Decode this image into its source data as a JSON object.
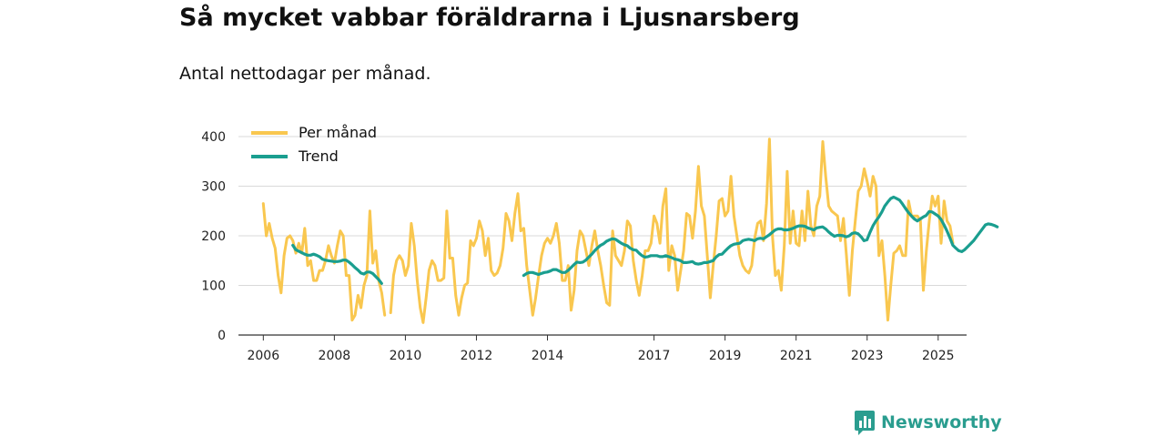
{
  "chart_data": {
    "type": "line",
    "title": "Så mycket vabbar föräldrarna i Ljusnarsberg",
    "subtitle": "Antal nettodagar per månad.",
    "xlabel": "",
    "ylabel": "",
    "xlim": [
      2006,
      2025.5
    ],
    "ylim": [
      0,
      400
    ],
    "yticks": [
      0,
      100,
      200,
      300,
      400
    ],
    "xticks": [
      {
        "value": 2006,
        "label": "2006"
      },
      {
        "value": 2008,
        "label": "2008"
      },
      {
        "value": 2010,
        "label": "2010"
      },
      {
        "value": 2012,
        "label": "2012"
      },
      {
        "value": 2014,
        "label": "2014"
      },
      {
        "value": 2017,
        "label": "2017"
      },
      {
        "value": 2019,
        "label": "2019"
      },
      {
        "value": 2021,
        "label": "2021"
      },
      {
        "value": 2023,
        "label": "2023"
      },
      {
        "value": 2025,
        "label": "2025"
      }
    ],
    "grid": true,
    "legend_position": "top-left",
    "series": [
      {
        "name": "Per månad",
        "color": "#f9c74f",
        "x_start": 2006.0,
        "x_step": 0.0833333,
        "values": [
          265,
          200,
          225,
          195,
          175,
          120,
          85,
          160,
          195,
          200,
          190,
          165,
          185,
          165,
          215,
          140,
          150,
          110,
          110,
          130,
          130,
          150,
          180,
          160,
          145,
          180,
          210,
          200,
          120,
          120,
          30,
          40,
          80,
          55,
          100,
          120,
          250,
          145,
          170,
          110,
          85,
          40,
          null,
          45,
          120,
          150,
          160,
          150,
          120,
          140,
          225,
          180,
          110,
          55,
          25,
          75,
          130,
          150,
          140,
          110,
          110,
          115,
          250,
          155,
          155,
          80,
          40,
          75,
          100,
          105,
          190,
          180,
          195,
          230,
          210,
          160,
          195,
          130,
          120,
          125,
          140,
          175,
          245,
          230,
          190,
          245,
          285,
          210,
          215,
          140,
          90,
          40,
          75,
          120,
          160,
          185,
          195,
          185,
          200,
          225,
          185,
          110,
          110,
          140,
          50,
          90,
          170,
          210,
          200,
          170,
          140,
          180,
          210,
          170,
          140,
          100,
          65,
          60,
          210,
          160,
          150,
          140,
          170,
          230,
          220,
          150,
          110,
          80,
          120,
          170,
          170,
          185,
          240,
          225,
          185,
          260,
          295,
          130,
          180,
          160,
          90,
          130,
          170,
          245,
          240,
          195,
          250,
          340,
          260,
          240,
          160,
          75,
          140,
          200,
          270,
          275,
          240,
          250,
          320,
          240,
          200,
          160,
          140,
          130,
          125,
          140,
          195,
          225,
          230,
          190,
          265,
          395,
          200,
          120,
          130,
          90,
          180,
          330,
          185,
          250,
          185,
          180,
          250,
          190,
          290,
          220,
          200,
          260,
          280,
          390,
          320,
          260,
          250,
          245,
          240,
          190,
          235,
          160,
          80,
          170,
          230,
          290,
          300,
          335,
          310,
          280,
          320,
          300,
          160,
          190,
          120,
          30,
          100,
          165,
          170,
          180,
          160,
          160,
          270,
          240,
          240,
          240,
          230,
          90,
          170,
          230,
          280,
          260,
          280,
          185,
          270,
          230,
          220,
          185
        ]
      },
      {
        "name": "Trend",
        "color": "#1a9e8f",
        "x_start": 2006.83,
        "x_step": 0.0833333,
        "values": [
          181,
          172,
          169,
          166,
          163,
          161,
          161,
          163,
          161,
          158,
          153,
          151,
          150,
          149,
          148,
          148,
          149,
          151,
          151,
          147,
          142,
          136,
          131,
          125,
          123,
          127,
          127,
          124,
          118,
          112,
          104,
          null,
          null,
          null,
          null,
          null,
          null,
          null,
          null,
          null,
          null,
          null,
          null,
          null,
          null,
          null,
          null,
          null,
          null,
          null,
          null,
          null,
          null,
          null,
          null,
          null,
          null,
          null,
          null,
          null,
          null,
          null,
          null,
          null,
          null,
          null,
          null,
          null,
          null,
          null,
          null,
          null,
          null,
          null,
          null,
          null,
          null,
          null,
          120,
          124,
          126,
          126,
          124,
          122,
          124,
          126,
          127,
          129,
          132,
          132,
          129,
          126,
          126,
          130,
          136,
          142,
          147,
          146,
          147,
          151,
          157,
          163,
          170,
          176,
          181,
          184,
          189,
          192,
          194,
          193,
          189,
          185,
          182,
          180,
          175,
          172,
          171,
          165,
          160,
          157,
          158,
          160,
          160,
          160,
          158,
          158,
          160,
          158,
          156,
          153,
          152,
          150,
          146,
          146,
          147,
          148,
          144,
          143,
          144,
          146,
          146,
          148,
          150,
          157,
          162,
          163,
          169,
          175,
          180,
          183,
          184,
          185,
          190,
          192,
          193,
          192,
          190,
          194,
          195,
          194,
          198,
          202,
          207,
          212,
          214,
          214,
          212,
          212,
          213,
          215,
          218,
          220,
          220,
          219,
          216,
          214,
          212,
          216,
          217,
          218,
          214,
          208,
          203,
          199,
          201,
          201,
          200,
          198,
          200,
          205,
          206,
          204,
          198,
          190,
          192,
          207,
          220,
          230,
          238,
          248,
          260,
          268,
          275,
          278,
          275,
          272,
          264,
          255,
          247,
          240,
          234,
          230,
          234,
          238,
          241,
          249,
          248,
          244,
          240,
          233,
          222,
          210,
          196,
          181,
          175,
          170,
          168,
          172,
          178,
          184,
          190,
          198,
          206,
          214,
          222,
          224,
          223,
          221,
          218
        ]
      }
    ]
  },
  "brand": {
    "name": "Newsworthy",
    "logo_icon": "bar-chart-speech-icon",
    "color": "#2a9d8f"
  }
}
